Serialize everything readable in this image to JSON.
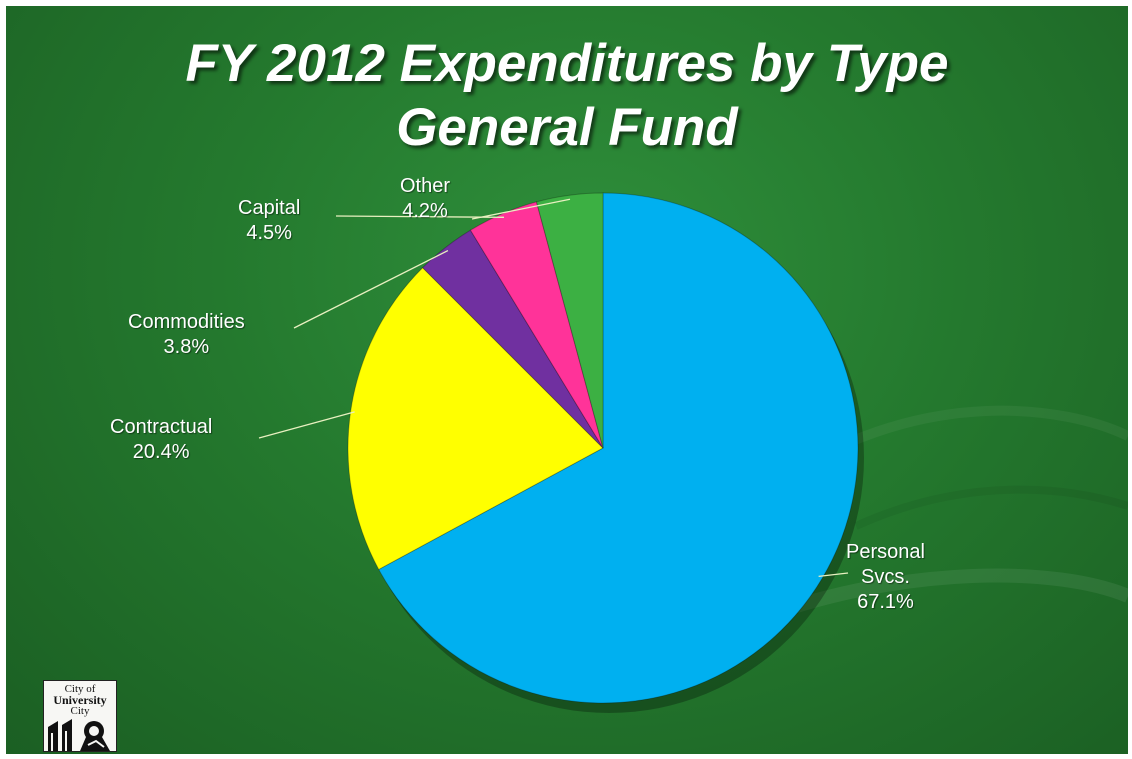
{
  "slide": {
    "title_line1": "FY 2012 Expenditures by Type",
    "title_line2": "General Fund"
  },
  "chart_data": {
    "type": "pie",
    "title": "FY 2012 Expenditures by Type General Fund",
    "unit": "%",
    "start": "12 o'clock",
    "direction": "clockwise",
    "slices": [
      {
        "label": "Personal Svcs.",
        "label_lines": [
          "Personal",
          "Svcs."
        ],
        "value": 67.1,
        "value_text": "67.1%",
        "color": "#00b0f0"
      },
      {
        "label": "Contractual",
        "label_lines": [
          "Contractual"
        ],
        "value": 20.4,
        "value_text": "20.4%",
        "color": "#ffff00"
      },
      {
        "label": "Commodities",
        "label_lines": [
          "Commodities"
        ],
        "value": 3.8,
        "value_text": "3.8%",
        "color": "#7030a0"
      },
      {
        "label": "Capital",
        "label_lines": [
          "Capital"
        ],
        "value": 4.5,
        "value_text": "4.5%",
        "color": "#ff3399"
      },
      {
        "label": "Other",
        "label_lines": [
          "Other"
        ],
        "value": 4.2,
        "value_text": "4.2%",
        "color": "#3cb043"
      }
    ],
    "legend": "none (callout labels)"
  },
  "logo": {
    "line1": "City of",
    "line2": "University",
    "line3": "City",
    "icon": "lion-seal-icon"
  },
  "colors": {
    "background": "#24792e",
    "title_text": "#ffffff",
    "label_text": "#ffffff",
    "leader_line": "#e8f0c0"
  }
}
